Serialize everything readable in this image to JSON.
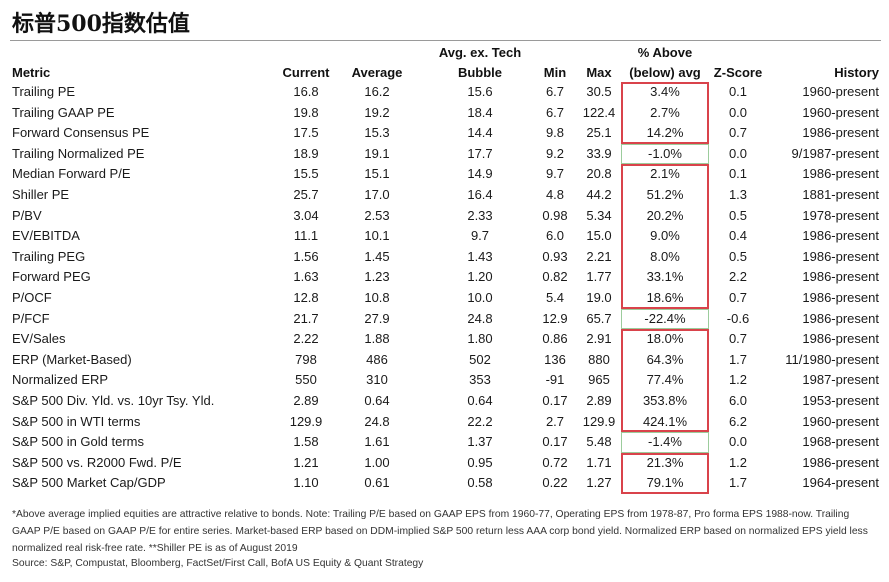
{
  "title": "标普500指数估值",
  "headers": {
    "metric": "Metric",
    "current": "Current",
    "average": "Average",
    "tech_line1": "Avg. ex. Tech",
    "tech_line2": "Bubble",
    "min": "Min",
    "max": "Max",
    "above_line1": "% Above",
    "above_line2": "(below) avg",
    "z": "Z-Score",
    "history": "History"
  },
  "rows": [
    {
      "metric": "Trailing PE",
      "current": "16.8",
      "average": "16.2",
      "tech": "15.6",
      "min": "6.7",
      "max": "30.5",
      "above": "3.4%",
      "z": "0.1",
      "history": "1960-present"
    },
    {
      "metric": "Trailing GAAP PE",
      "current": "19.8",
      "average": "19.2",
      "tech": "18.4",
      "min": "6.7",
      "max": "122.4",
      "above": "2.7%",
      "z": "0.0",
      "history": "1960-present"
    },
    {
      "metric": "Forward Consensus PE",
      "current": "17.5",
      "average": "15.3",
      "tech": "14.4",
      "min": "9.8",
      "max": "25.1",
      "above": "14.2%",
      "z": "0.7",
      "history": "1986-present"
    },
    {
      "metric": "Trailing Normalized PE",
      "current": "18.9",
      "average": "19.1",
      "tech": "17.7",
      "min": "9.2",
      "max": "33.9",
      "above": "-1.0%",
      "z": "0.0",
      "history": "9/1987-present"
    },
    {
      "metric": "Median Forward P/E",
      "current": "15.5",
      "average": "15.1",
      "tech": "14.9",
      "min": "9.7",
      "max": "20.8",
      "above": "2.1%",
      "z": "0.1",
      "history": "1986-present"
    },
    {
      "metric": "Shiller PE",
      "current": "25.7",
      "average": "17.0",
      "tech": "16.4",
      "min": "4.8",
      "max": "44.2",
      "above": "51.2%",
      "z": "1.3",
      "history": "1881-present"
    },
    {
      "metric": "P/BV",
      "current": "3.04",
      "average": "2.53",
      "tech": "2.33",
      "min": "0.98",
      "max": "5.34",
      "above": "20.2%",
      "z": "0.5",
      "history": "1978-present"
    },
    {
      "metric": "EV/EBITDA",
      "current": "11.1",
      "average": "10.1",
      "tech": "9.7",
      "min": "6.0",
      "max": "15.0",
      "above": "9.0%",
      "z": "0.4",
      "history": "1986-present"
    },
    {
      "metric": "Trailing PEG",
      "current": "1.56",
      "average": "1.45",
      "tech": "1.43",
      "min": "0.93",
      "max": "2.21",
      "above": "8.0%",
      "z": "0.5",
      "history": "1986-present"
    },
    {
      "metric": "Forward PEG",
      "current": "1.63",
      "average": "1.23",
      "tech": "1.20",
      "min": "0.82",
      "max": "1.77",
      "above": "33.1%",
      "z": "2.2",
      "history": "1986-present"
    },
    {
      "metric": "P/OCF",
      "current": "12.8",
      "average": "10.8",
      "tech": "10.0",
      "min": "5.4",
      "max": "19.0",
      "above": "18.6%",
      "z": "0.7",
      "history": "1986-present"
    },
    {
      "metric": "P/FCF",
      "current": "21.7",
      "average": "27.9",
      "tech": "24.8",
      "min": "12.9",
      "max": "65.7",
      "above": "-22.4%",
      "z": "-0.6",
      "history": "1986-present"
    },
    {
      "metric": "EV/Sales",
      "current": "2.22",
      "average": "1.88",
      "tech": "1.80",
      "min": "0.86",
      "max": "2.91",
      "above": "18.0%",
      "z": "0.7",
      "history": "1986-present"
    },
    {
      "metric": "ERP (Market-Based)",
      "current": "798",
      "average": "486",
      "tech": "502",
      "min": "136",
      "max": "880",
      "above": "64.3%",
      "z": "1.7",
      "history": "11/1980-present"
    },
    {
      "metric": "Normalized ERP",
      "current": "550",
      "average": "310",
      "tech": "353",
      "min": "-91",
      "max": "965",
      "above": "77.4%",
      "z": "1.2",
      "history": "1987-present"
    },
    {
      "metric": "S&P 500 Div. Yld. vs. 10yr Tsy. Yld.",
      "current": "2.89",
      "average": "0.64",
      "tech": "0.64",
      "min": "0.17",
      "max": "2.89",
      "above": "353.8%",
      "z": "6.0",
      "history": "1953-present"
    },
    {
      "metric": "S&P 500 in WTI terms",
      "current": "129.9",
      "average": "24.8",
      "tech": "22.2",
      "min": "2.7",
      "max": "129.9",
      "above": "424.1%",
      "z": "6.2",
      "history": "1960-present"
    },
    {
      "metric": "S&P 500 in Gold terms",
      "current": "1.58",
      "average": "1.61",
      "tech": "1.37",
      "min": "0.17",
      "max": "5.48",
      "above": "-1.4%",
      "z": "0.0",
      "history": "1968-present"
    },
    {
      "metric": "S&P 500 vs. R2000 Fwd. P/E",
      "current": "1.21",
      "average": "1.00",
      "tech": "0.95",
      "min": "0.72",
      "max": "1.71",
      "above": "21.3%",
      "z": "1.2",
      "history": "1986-present"
    },
    {
      "metric": "S&P 500 Market Cap/GDP",
      "current": "1.10",
      "average": "0.61",
      "tech": "0.58",
      "min": "0.22",
      "max": "1.27",
      "above": "79.1%",
      "z": "1.7",
      "history": "1964-present"
    }
  ],
  "highlight_colors": {
    "red": "#d9434b",
    "green": "#9ccc9c"
  },
  "footnote": "*Above average implied equities are attractive relative to bonds. Note: Trailing P/E based on GAAP EPS from 1960-77, Operating EPS from 1978-87, Pro forma EPS 1988-now. Trailing GAAP P/E based on GAAP P/E for entire series. Market-based ERP based on DDM-implied S&P 500 return less AAA corp bond yield. Normalized ERP based on normalized EPS yield less normalized real risk-free rate. **Shiller PE is as of August 2019",
  "source": "Source: S&P, Compustat, Bloomberg, FactSet/First Call, BofA US Equity & Quant Strategy"
}
